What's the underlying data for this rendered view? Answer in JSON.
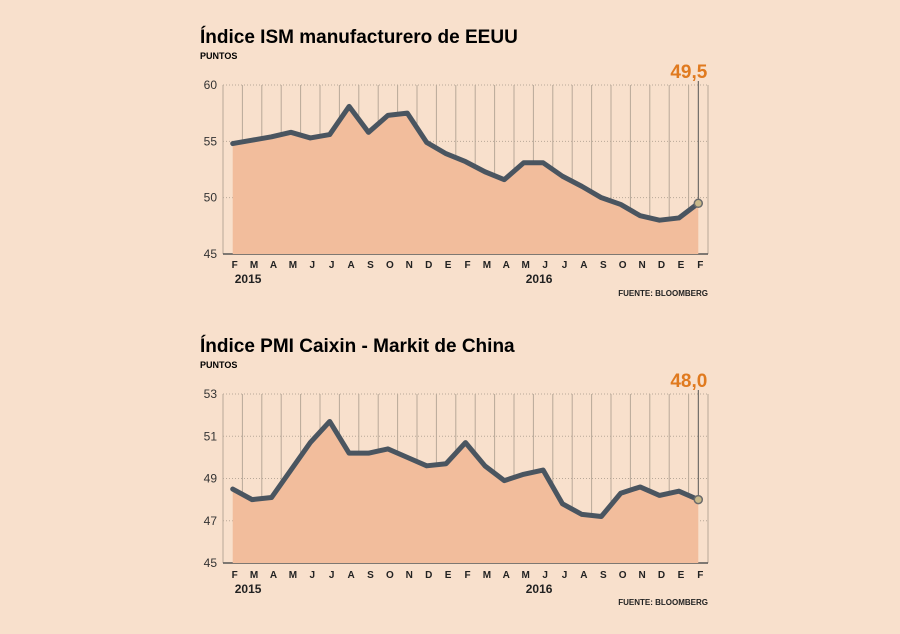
{
  "colors": {
    "background": "#f8e0cc",
    "area": "#f2bd9c",
    "line": "#4a5560",
    "grid": "#b8a898",
    "accent": "#e07a1f",
    "marker": "#c9b98a"
  },
  "chart_data": [
    {
      "type": "area",
      "title": "Índice ISM manufacturero  de EEUU",
      "subtitle": "PUNTOS",
      "source": "FUENTE: BLOOMBERG",
      "categories": [
        "F",
        "M",
        "A",
        "M",
        "J",
        "J",
        "A",
        "S",
        "O",
        "N",
        "D",
        "E",
        "F",
        "M",
        "A",
        "M",
        "J",
        "J",
        "A",
        "S",
        "O",
        "N",
        "D",
        "E",
        "F"
      ],
      "years": [
        {
          "label": "2015",
          "index": 1
        },
        {
          "label": "2016",
          "index": 16
        }
      ],
      "values": [
        54.8,
        55.1,
        55.4,
        55.8,
        55.3,
        55.6,
        58.1,
        55.8,
        57.3,
        57.5,
        54.9,
        53.9,
        53.2,
        52.3,
        51.6,
        53.1,
        53.1,
        51.9,
        51.0,
        50.0,
        49.4,
        48.4,
        48.0,
        48.2,
        49.5
      ],
      "ylim": [
        45,
        60
      ],
      "yticks": [
        45,
        50,
        55,
        60
      ],
      "ytick_labels": [
        "45",
        "50",
        "55",
        "60"
      ],
      "last_label": "49,5",
      "xlabel": "",
      "ylabel": ""
    },
    {
      "type": "area",
      "title": "Índice PMI Caixin - Markit de China",
      "subtitle": "PUNTOS",
      "source": "FUENTE: BLOOMBERG",
      "categories": [
        "F",
        "M",
        "A",
        "M",
        "J",
        "J",
        "A",
        "S",
        "O",
        "N",
        "D",
        "E",
        "F",
        "M",
        "A",
        "M",
        "J",
        "J",
        "A",
        "S",
        "O",
        "N",
        "D",
        "E",
        "F"
      ],
      "years": [
        {
          "label": "2015",
          "index": 1
        },
        {
          "label": "2016",
          "index": 16
        }
      ],
      "values": [
        48.5,
        48.0,
        48.1,
        49.4,
        50.7,
        51.7,
        50.2,
        50.2,
        50.4,
        50.0,
        49.6,
        49.7,
        50.7,
        49.6,
        48.9,
        49.2,
        49.4,
        47.8,
        47.3,
        47.2,
        48.3,
        48.6,
        48.2,
        48.4,
        48.0
      ],
      "ylim": [
        45,
        53
      ],
      "yticks": [
        45,
        47,
        49,
        51,
        53
      ],
      "ytick_labels": [
        "45",
        "47",
        "49",
        "51",
        "53"
      ],
      "last_label": "48,0",
      "xlabel": "",
      "ylabel": ""
    }
  ]
}
